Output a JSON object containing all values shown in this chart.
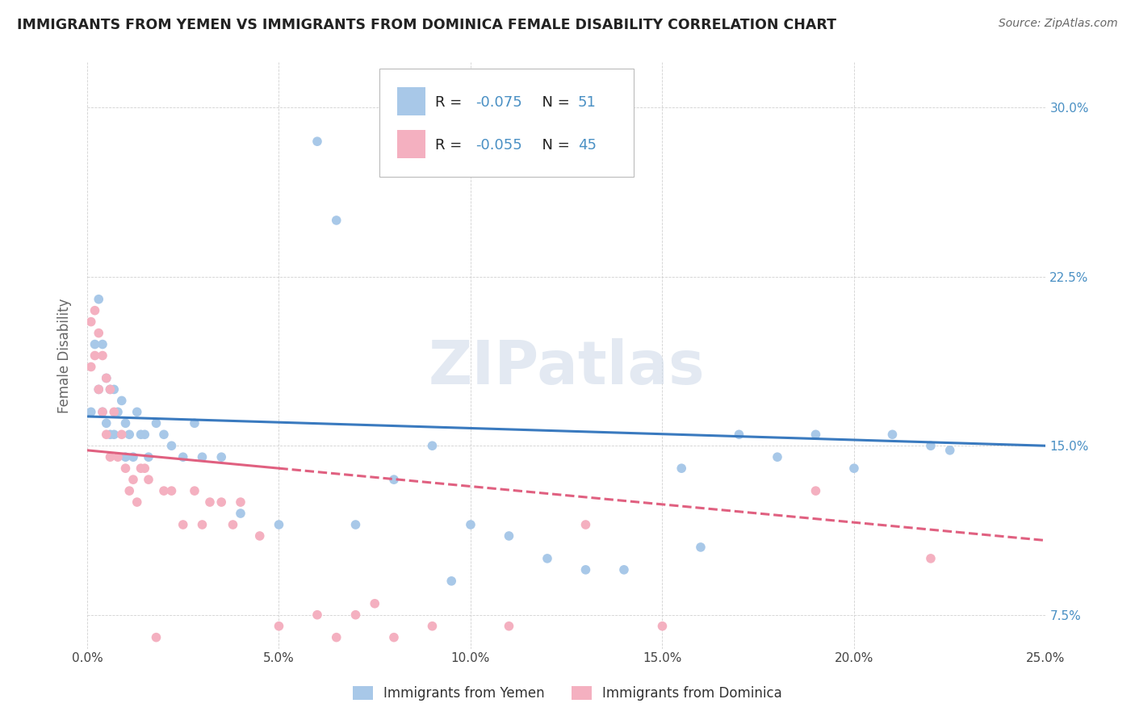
{
  "title": "IMMIGRANTS FROM YEMEN VS IMMIGRANTS FROM DOMINICA FEMALE DISABILITY CORRELATION CHART",
  "source": "Source: ZipAtlas.com",
  "ylabel": "Female Disability",
  "legend_label1": "Immigrants from Yemen",
  "legend_label2": "Immigrants from Dominica",
  "r1": -0.075,
  "n1": 51,
  "r2": -0.055,
  "n2": 45,
  "color1": "#a8c8e8",
  "color2": "#f4b0c0",
  "trendline1_color": "#3a7abf",
  "trendline2_color": "#e06080",
  "xlim": [
    0.0,
    0.25
  ],
  "ylim": [
    0.06,
    0.32
  ],
  "xticks": [
    0.0,
    0.05,
    0.1,
    0.15,
    0.2,
    0.25
  ],
  "yticks": [
    0.075,
    0.15,
    0.225,
    0.3
  ],
  "ytick_labels": [
    "7.5%",
    "15.0%",
    "22.5%",
    "30.0%"
  ],
  "xtick_labels": [
    "0.0%",
    "5.0%",
    "10.0%",
    "15.0%",
    "20.0%",
    "25.0%"
  ],
  "background_color": "#ffffff",
  "watermark": "ZIPatlas",
  "yemen_x": [
    0.001,
    0.002,
    0.003,
    0.003,
    0.004,
    0.004,
    0.005,
    0.005,
    0.006,
    0.006,
    0.007,
    0.007,
    0.008,
    0.009,
    0.01,
    0.01,
    0.011,
    0.012,
    0.013,
    0.014,
    0.015,
    0.016,
    0.018,
    0.02,
    0.022,
    0.025,
    0.028,
    0.03,
    0.035,
    0.04,
    0.05,
    0.06,
    0.065,
    0.07,
    0.08,
    0.09,
    0.095,
    0.1,
    0.11,
    0.12,
    0.13,
    0.14,
    0.155,
    0.16,
    0.17,
    0.18,
    0.19,
    0.2,
    0.21,
    0.22,
    0.225
  ],
  "yemen_y": [
    0.165,
    0.195,
    0.215,
    0.175,
    0.195,
    0.165,
    0.18,
    0.16,
    0.175,
    0.155,
    0.175,
    0.155,
    0.165,
    0.17,
    0.16,
    0.145,
    0.155,
    0.145,
    0.165,
    0.155,
    0.155,
    0.145,
    0.16,
    0.155,
    0.15,
    0.145,
    0.16,
    0.145,
    0.145,
    0.12,
    0.115,
    0.285,
    0.25,
    0.115,
    0.135,
    0.15,
    0.09,
    0.115,
    0.11,
    0.1,
    0.095,
    0.095,
    0.14,
    0.105,
    0.155,
    0.145,
    0.155,
    0.14,
    0.155,
    0.15,
    0.148
  ],
  "dominica_x": [
    0.001,
    0.001,
    0.002,
    0.002,
    0.003,
    0.003,
    0.004,
    0.004,
    0.005,
    0.005,
    0.006,
    0.006,
    0.007,
    0.008,
    0.009,
    0.01,
    0.011,
    0.012,
    0.013,
    0.014,
    0.015,
    0.016,
    0.018,
    0.02,
    0.022,
    0.025,
    0.028,
    0.03,
    0.032,
    0.035,
    0.038,
    0.04,
    0.045,
    0.05,
    0.06,
    0.065,
    0.07,
    0.075,
    0.08,
    0.09,
    0.11,
    0.13,
    0.15,
    0.19,
    0.22
  ],
  "dominica_y": [
    0.205,
    0.185,
    0.21,
    0.19,
    0.2,
    0.175,
    0.19,
    0.165,
    0.18,
    0.155,
    0.175,
    0.145,
    0.165,
    0.145,
    0.155,
    0.14,
    0.13,
    0.135,
    0.125,
    0.14,
    0.14,
    0.135,
    0.065,
    0.13,
    0.13,
    0.115,
    0.13,
    0.115,
    0.125,
    0.125,
    0.115,
    0.125,
    0.11,
    0.07,
    0.075,
    0.065,
    0.075,
    0.08,
    0.065,
    0.07,
    0.07,
    0.115,
    0.07,
    0.13,
    0.1
  ]
}
